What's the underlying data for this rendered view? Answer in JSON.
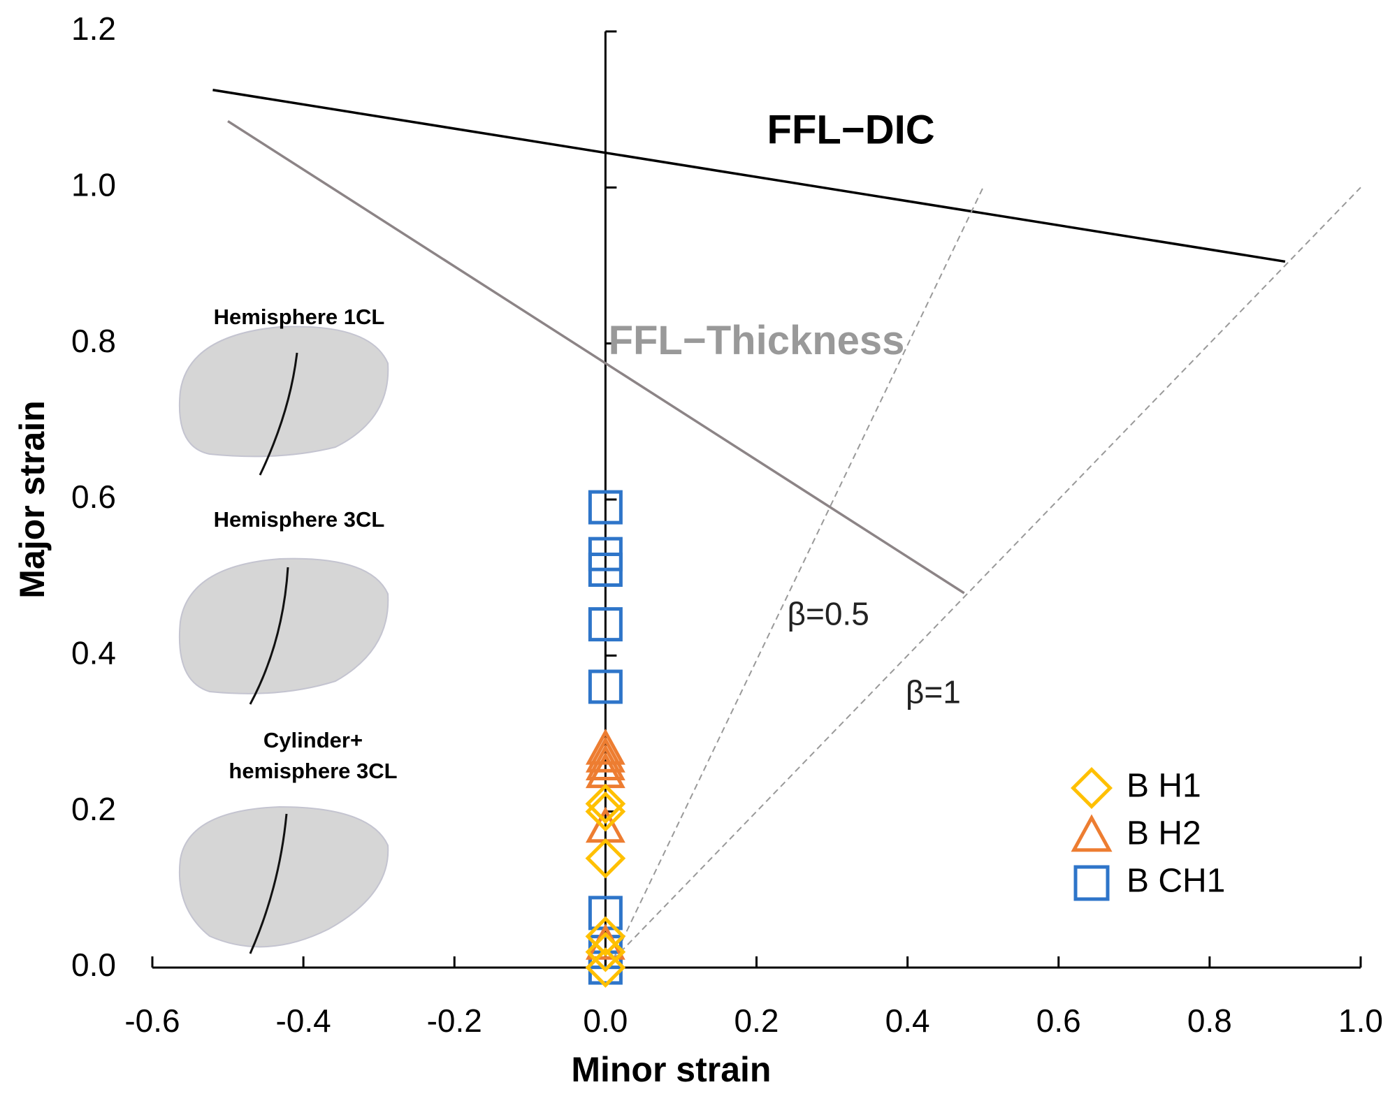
{
  "chart_data": {
    "type": "scatter",
    "x_label": "Minor strain",
    "y_label": "Major strain",
    "xlim": [
      -0.6,
      1.0
    ],
    "ylim": [
      0,
      1.2
    ],
    "xticks": [
      -0.6,
      -0.4,
      -0.2,
      {
        "value": 0,
        "label": "0.0"
      },
      0.2,
      0.4,
      0.6,
      0.8,
      {
        "value": 1,
        "label": "1.0"
      }
    ],
    "yticks": [
      {
        "value": 0,
        "label": "0.0"
      },
      0.2,
      0.4,
      0.6,
      0.8,
      {
        "value": 1,
        "label": "1.0"
      },
      1.2
    ],
    "series": [
      {
        "name": "B H1",
        "color": "#ffc000",
        "marker": "diamond",
        "x": [
          0,
          0,
          0,
          0,
          0,
          0
        ],
        "values": [
          0.0,
          0.02,
          0.04,
          0.14,
          0.2,
          0.21
        ]
      },
      {
        "name": "B H2",
        "color": "#ed7d31",
        "marker": "triangle",
        "x": [
          0,
          0,
          0,
          0,
          0,
          0
        ],
        "values": [
          0.03,
          0.18,
          0.25,
          0.26,
          0.27,
          0.28
        ]
      },
      {
        "name": "B CH1",
        "color": "#2e75c9",
        "marker": "square",
        "x": [
          0,
          0,
          0,
          0,
          0,
          0,
          0,
          0
        ],
        "values": [
          0.0,
          0.02,
          0.07,
          0.36,
          0.44,
          0.51,
          0.53,
          0.59
        ]
      }
    ],
    "lines": [
      {
        "label": "FFL−DIC",
        "color": "#000000",
        "dashed": false,
        "x": [
          -0.52,
          0.9
        ],
        "values": [
          1.125,
          0.905
        ]
      },
      {
        "label": "FFL−Thickness",
        "color": "#8c8486",
        "dashed": false,
        "x": [
          -0.5,
          0.475
        ],
        "values": [
          1.085,
          0.48
        ]
      },
      {
        "label": "β=0.5",
        "color": "#999999",
        "dashed": true,
        "x": [
          0.01,
          0.5
        ],
        "values": [
          0.01,
          1.0
        ]
      },
      {
        "label": "β=1",
        "color": "#999999",
        "dashed": true,
        "x": [
          0.01,
          1.0
        ],
        "values": [
          0.01,
          1.0
        ]
      }
    ],
    "insets": [
      [
        "Hemisphere 1CL"
      ],
      [
        "Hemisphere 3CL"
      ],
      [
        "Cylinder+",
        "hemisphere 3CL"
      ]
    ]
  }
}
